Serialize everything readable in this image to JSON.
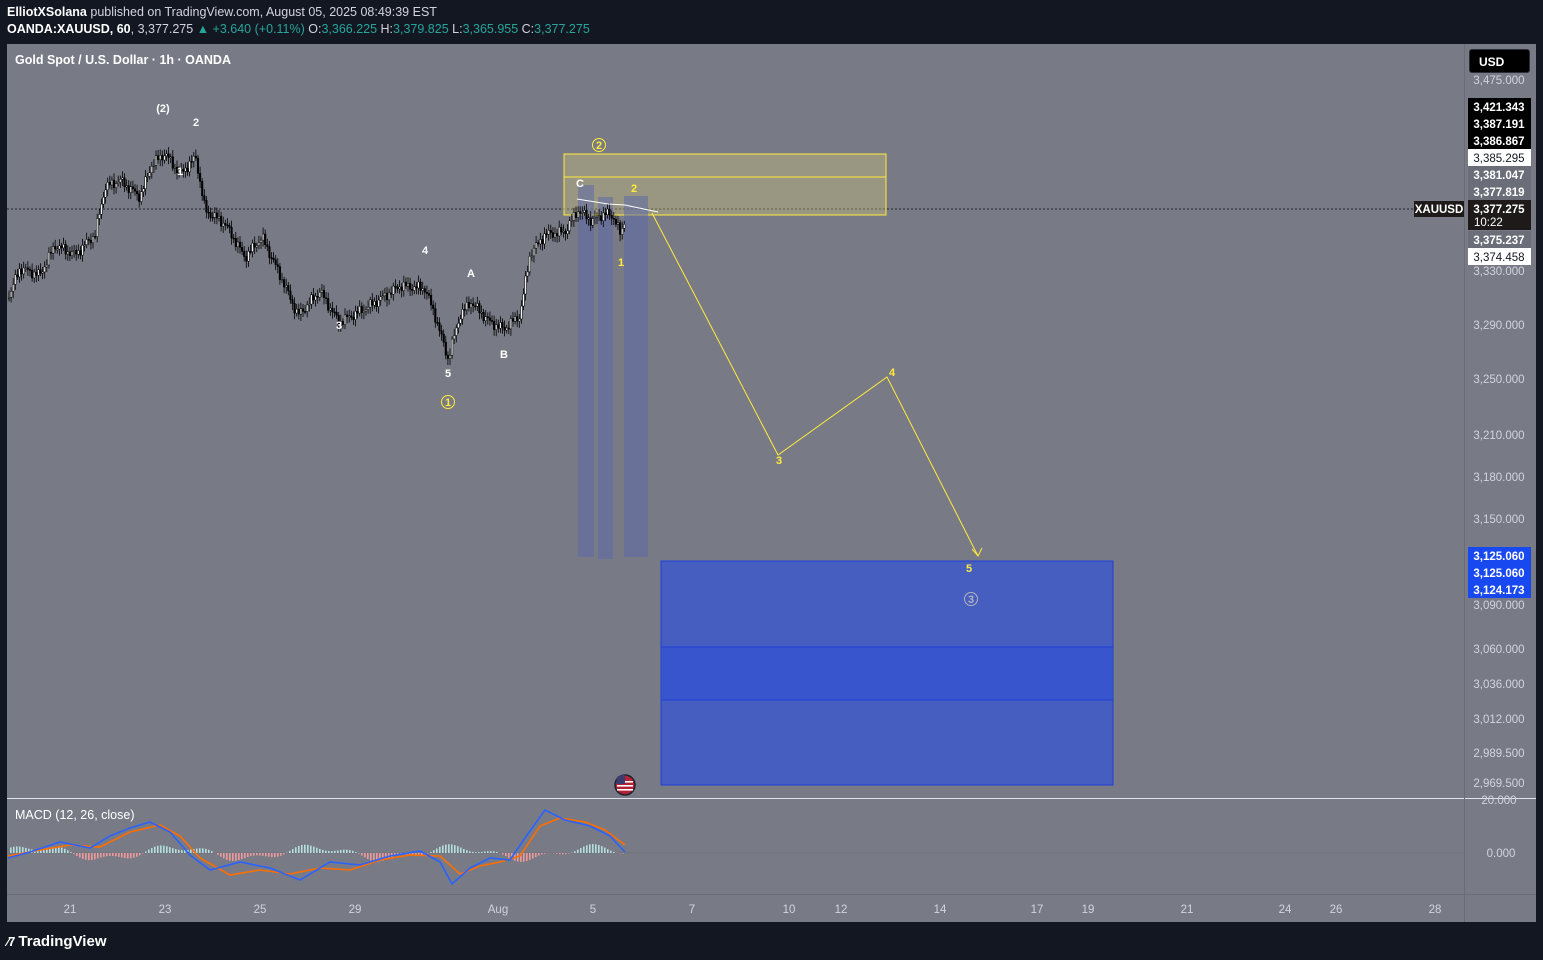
{
  "header": {
    "author": "ElliotXSolana",
    "published_text": "published on TradingView.com, August 05, 2025 08:49:39 EST",
    "symbol_line": "OANDA:XAUUSD, 60",
    "last": "3,377.275",
    "change": "+3.640 (+0.11%)",
    "o_label": "O:",
    "o_value": "3,366.225",
    "h_label": "H:",
    "h_value": "3,379.825",
    "l_label": "L:",
    "l_value": "3,365.955",
    "c_label": "C:",
    "c_value": "3,377.275"
  },
  "chart": {
    "title": "Gold Spot / U.S. Dollar · 1h · OANDA",
    "currency": "USD",
    "symbol_tag": "XAUUSD",
    "countdown": "10:22",
    "colors": {
      "background": "#787b86",
      "axis_bg": "#787b86",
      "zone_yellow": "#ffeb3b",
      "target_blue": "#3d5ac8",
      "candle": "#000000",
      "dark": "#131722"
    }
  },
  "price_axis": {
    "ticks": [
      "3,475.000",
      "3,330.000",
      "3,290.000",
      "3,250.000",
      "3,210.000",
      "3,180.000",
      "3,150.000",
      "3,090.000",
      "3,060.000",
      "3,036.000",
      "3,012.000",
      "2,989.500",
      "2,969.500"
    ],
    "tags": [
      {
        "label": "3,421.343",
        "style": "dark"
      },
      {
        "label": "3,387.191",
        "style": "dark"
      },
      {
        "label": "3,386.867",
        "style": "dark"
      },
      {
        "label": "3,385.295",
        "style": "white"
      },
      {
        "label": "3,381.047",
        "style": "grey"
      },
      {
        "label": "3,377.819",
        "style": "grey"
      },
      {
        "label": "3,377.275",
        "style": "dark"
      },
      {
        "label": "3,375.237",
        "style": "grey"
      },
      {
        "label": "3,374.458",
        "style": "white"
      },
      {
        "label": "3,125.060",
        "style": "blue"
      },
      {
        "label": "3,125.060",
        "style": "blue"
      },
      {
        "label": "3,124.173",
        "style": "blue"
      }
    ]
  },
  "time_axis": [
    "21",
    "23",
    "25",
    "29",
    "Aug",
    "5",
    "7",
    "10",
    "12",
    "14",
    "17",
    "19",
    "21",
    "24",
    "26",
    "28"
  ],
  "wave_labels": {
    "w2p": "(2)",
    "w2": "2",
    "w1": "1",
    "w3": "3",
    "w4": "4",
    "w5": "5",
    "c1": "1",
    "wA": "A",
    "wB": "B",
    "wC": "C",
    "c2": "2",
    "y2": "2",
    "y1": "1",
    "p3": "3",
    "p4": "4",
    "p5": "5",
    "c3": "3"
  },
  "macd": {
    "title": "MACD (12, 26, close)",
    "ticks": [
      "20.000",
      "0.000"
    ]
  },
  "footer": {
    "brand": "TradingView"
  },
  "chart_data": {
    "type": "line",
    "title": "Gold Spot / U.S. Dollar · 1h · OANDA",
    "x": [
      "21",
      "23",
      "25",
      "29",
      "Aug",
      "5",
      "7",
      "10",
      "12",
      "14"
    ],
    "ylim": [
      2960,
      3480
    ],
    "series": [
      {
        "values": [
          3335,
          3420,
          3355,
          3300,
          3270,
          3378,
          null,
          null,
          null,
          null
        ]
      },
      {
        "values": [
          null,
          null,
          null,
          null,
          null,
          3378,
          3300,
          3210,
          3250,
          3125
        ]
      }
    ],
    "annotations": {
      "target_zone": [
        2965,
        3125
      ],
      "resistance_zone": [
        3372,
        3392
      ]
    }
  }
}
